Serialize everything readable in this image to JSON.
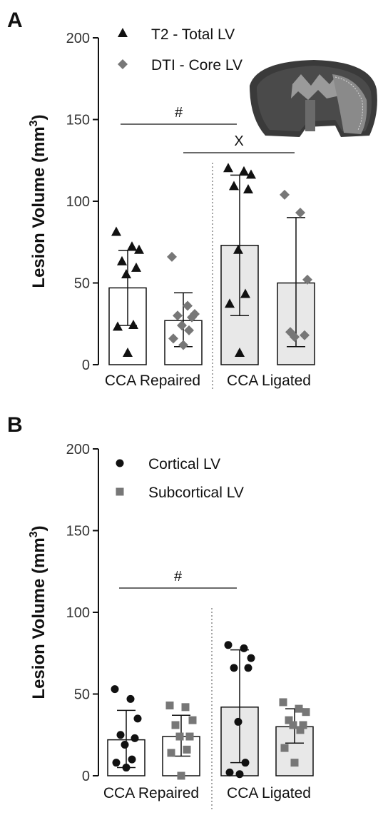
{
  "colors": {
    "black": "#111111",
    "gray_marker": "#777777",
    "bar_fill_repaired": "#ffffff",
    "bar_fill_ligated": "#e8e8e8",
    "axis": "#111111"
  },
  "panels": [
    {
      "panel_label": "A",
      "ylabel": "Lesion Volume (mm",
      "ylabel_sup": "3",
      "ylabel_close": ")",
      "yticks": [
        "0",
        "50",
        "100",
        "150",
        "200"
      ],
      "group_labels": [
        "CCA Repaired",
        "CCA Ligated"
      ],
      "legend": [
        {
          "label": "T2 - Total LV",
          "marker": "triangle",
          "color": "#111111"
        },
        {
          "label": "DTI - Core LV",
          "marker": "diamond",
          "color": "#777777"
        }
      ],
      "annotations": [
        {
          "symbol": "#",
          "from_bar": 0,
          "to_bar": 2
        },
        {
          "symbol": "X",
          "from_bar": 1,
          "to_bar": 3
        }
      ],
      "has_inset_image": true
    },
    {
      "panel_label": "B",
      "ylabel": "Lesion Volume (mm",
      "ylabel_sup": "3",
      "ylabel_close": ")",
      "yticks": [
        "0",
        "50",
        "100",
        "150",
        "200"
      ],
      "group_labels": [
        "CCA Repaired",
        "CCA Ligated"
      ],
      "legend": [
        {
          "label": "Cortical LV",
          "marker": "circle",
          "color": "#111111"
        },
        {
          "label": "Subcortical LV",
          "marker": "square",
          "color": "#777777"
        }
      ],
      "annotations": [
        {
          "symbol": "#",
          "from_bar": 0,
          "to_bar": 2
        }
      ],
      "has_inset_image": false
    }
  ],
  "chart_data": [
    {
      "type": "bar",
      "panel": "A",
      "ylabel": "Lesion Volume (mm3)",
      "ylim": [
        0,
        200
      ],
      "yticks": [
        0,
        50,
        100,
        150,
        200
      ],
      "categories": [
        "CCA Repaired",
        "CCA Ligated"
      ],
      "series": [
        {
          "name": "T2 - Total LV",
          "marker": "triangle",
          "means": [
            47,
            73
          ],
          "sd_low": [
            24,
            30
          ],
          "sd_high": [
            70,
            116
          ],
          "points": [
            [
              81,
              72,
              70,
              63,
              59,
              55,
              24,
              23,
              7
            ],
            [
              120,
              118,
              116,
              109,
              107,
              70,
              43,
              37,
              7
            ]
          ]
        },
        {
          "name": "DTI - Core LV",
          "marker": "diamond",
          "means": [
            27,
            50
          ],
          "sd_low": [
            11,
            11
          ],
          "sd_high": [
            44,
            90
          ],
          "points": [
            [
              66,
              36,
              31,
              30,
              29,
              24,
              21,
              16,
              12
            ],
            [
              104,
              93,
              52,
              20,
              18,
              17
            ]
          ]
        }
      ]
    },
    {
      "type": "bar",
      "panel": "B",
      "ylabel": "Lesion Volume (mm3)",
      "ylim": [
        0,
        200
      ],
      "yticks": [
        0,
        50,
        100,
        150,
        200
      ],
      "categories": [
        "CCA Repaired",
        "CCA Ligated"
      ],
      "series": [
        {
          "name": "Cortical LV",
          "marker": "circle",
          "means": [
            22,
            42
          ],
          "sd_low": [
            5,
            8
          ],
          "sd_high": [
            40,
            77
          ],
          "points": [
            [
              53,
              47,
              35,
              25,
              23,
              19,
              10,
              8,
              5
            ],
            [
              80,
              78,
              72,
              66,
              66,
              33,
              8,
              2,
              1
            ]
          ]
        },
        {
          "name": "Subcortical LV",
          "marker": "square",
          "means": [
            24,
            30
          ],
          "sd_low": [
            12,
            20
          ],
          "sd_high": [
            37,
            41
          ],
          "points": [
            [
              43,
              42,
              34,
              31,
              24,
              24,
              16,
              14,
              0
            ],
            [
              45,
              41,
              39,
              34,
              31,
              31,
              28,
              17,
              8
            ]
          ]
        }
      ]
    }
  ]
}
